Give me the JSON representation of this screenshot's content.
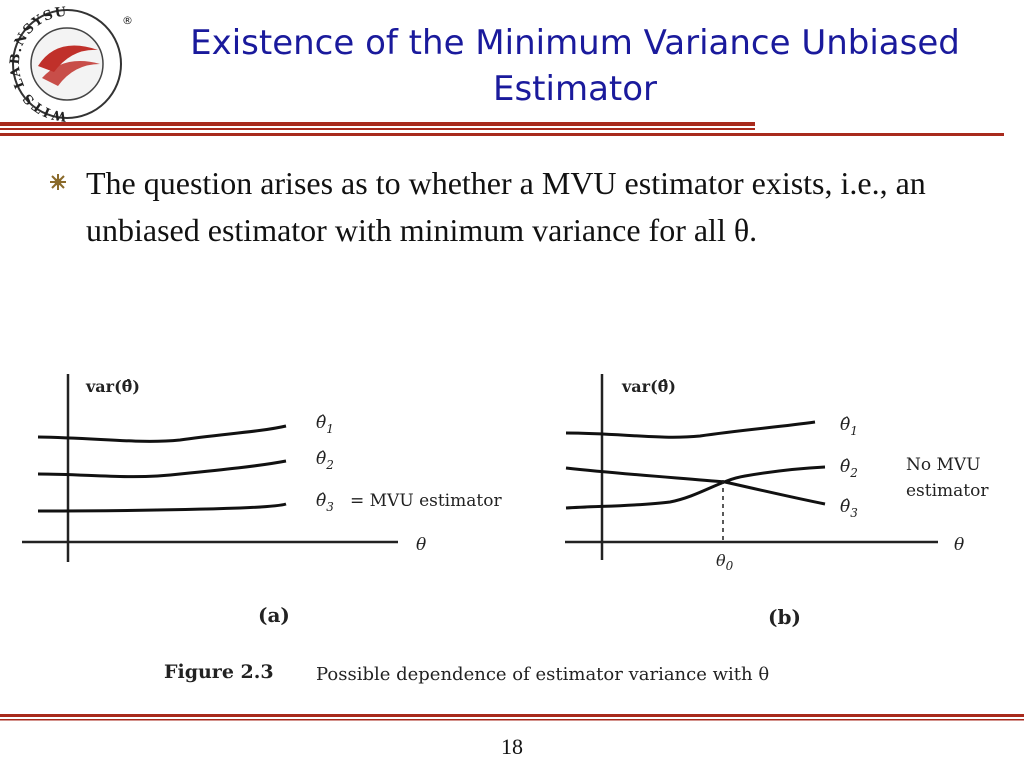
{
  "logo": {
    "ring_text": "WITS LAB.NSYSU",
    "registered_mark": "®"
  },
  "header": {
    "title_line1": "Existence of the Minimum Variance Unbiased",
    "title_line2": "Estimator"
  },
  "bullet": {
    "icon": "bullet-star-icon",
    "text": "The question arises as to whether a MVU estimator exists, i.e., an unbiased estimator with minimum variance for all θ."
  },
  "figure": {
    "panel_a": {
      "ylabel": "var(θ̂)",
      "xlabel": "θ",
      "caption": "(a)",
      "labels": {
        "theta1": "θ̂",
        "theta1_sub": "1",
        "theta2": "θ̂",
        "theta2_sub": "2",
        "theta3": "θ̂",
        "theta3_sub": "3",
        "mvu": "= MVU estimator"
      }
    },
    "panel_b": {
      "ylabel": "var(θ̂)",
      "xlabel": "θ",
      "caption": "(b)",
      "theta0": "θ",
      "theta0_sub": "0",
      "labels": {
        "theta1": "θ̂",
        "theta1_sub": "1",
        "theta2": "θ̂",
        "theta2_sub": "2",
        "theta3": "θ̂",
        "theta3_sub": "3"
      },
      "no_mvu_line1": "No MVU",
      "no_mvu_line2": "estimator"
    },
    "caption_label": "Figure 2.3",
    "caption_text": "Possible dependence of estimator variance with θ"
  },
  "footer": {
    "page_number": "18"
  },
  "colors": {
    "title": "#1a1a9c",
    "rule": "#a82a1c",
    "logo_red": "#c0302a"
  }
}
